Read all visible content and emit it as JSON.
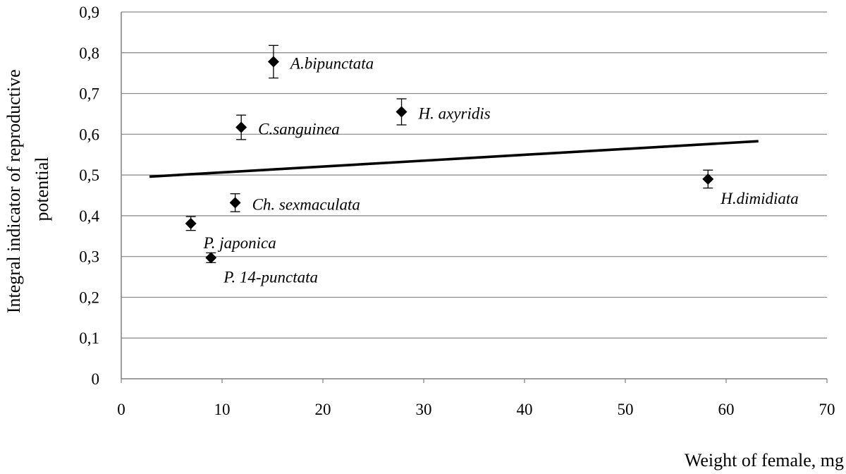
{
  "chart_data": {
    "type": "scatter",
    "title": "",
    "xlabel": "Weight of female, mg",
    "ylabel": "Integral indicator of reproductive potential",
    "ylabel_lines": [
      "Integral indicator of reproductive",
      "potential"
    ],
    "xlim": [
      0,
      70
    ],
    "ylim": [
      0,
      0.9
    ],
    "grid": "horizontal",
    "legend": "none",
    "x_ticks": [
      {
        "value": 0,
        "label": "0"
      },
      {
        "value": 10,
        "label": "10"
      },
      {
        "value": 20,
        "label": "20"
      },
      {
        "value": 30,
        "label": "30"
      },
      {
        "value": 40,
        "label": "40"
      },
      {
        "value": 50,
        "label": "50"
      },
      {
        "value": 60,
        "label": "60"
      },
      {
        "value": 70,
        "label": "70"
      }
    ],
    "y_ticks": [
      {
        "value": 0,
        "label": "0"
      },
      {
        "value": 0.1,
        "label": "0,1"
      },
      {
        "value": 0.2,
        "label": "0,2"
      },
      {
        "value": 0.3,
        "label": "0,3"
      },
      {
        "value": 0.4,
        "label": "0,4"
      },
      {
        "value": 0.5,
        "label": "0,5"
      },
      {
        "value": 0.6,
        "label": "0,6"
      },
      {
        "value": 0.7,
        "label": "0,7"
      },
      {
        "value": 0.8,
        "label": "0,8"
      },
      {
        "value": 0.9,
        "label": "0,9"
      }
    ],
    "points": [
      {
        "label": "A.bipunctata",
        "x": 15.1,
        "y": 0.778,
        "err": 0.04,
        "label_side": "right"
      },
      {
        "label": "C.sanguinea",
        "x": 11.9,
        "y": 0.617,
        "err": 0.03,
        "label_side": "right"
      },
      {
        "label": "H. axyridis",
        "x": 27.8,
        "y": 0.655,
        "err": 0.032,
        "label_side": "right"
      },
      {
        "label": "Ch. sexmaculata",
        "x": 11.3,
        "y": 0.432,
        "err": 0.022,
        "label_side": "right"
      },
      {
        "label": "H.dimidiata",
        "x": 58.2,
        "y": 0.49,
        "err": 0.022,
        "label_side": "below-right"
      },
      {
        "label": "P. japonica",
        "x": 6.9,
        "y": 0.381,
        "err": 0.017,
        "label_side": "below-right"
      },
      {
        "label": "P. 14-punctata",
        "x": 8.9,
        "y": 0.297,
        "err": 0.012,
        "label_side": "below-right"
      }
    ],
    "trendline": {
      "type": "linear",
      "x": [
        2.8,
        63.2
      ],
      "y": [
        0.496,
        0.583
      ]
    },
    "colors": {
      "axis": "#7f7f7f",
      "grid": "#868686",
      "marker": "#000000",
      "trendline": "#000000"
    }
  }
}
